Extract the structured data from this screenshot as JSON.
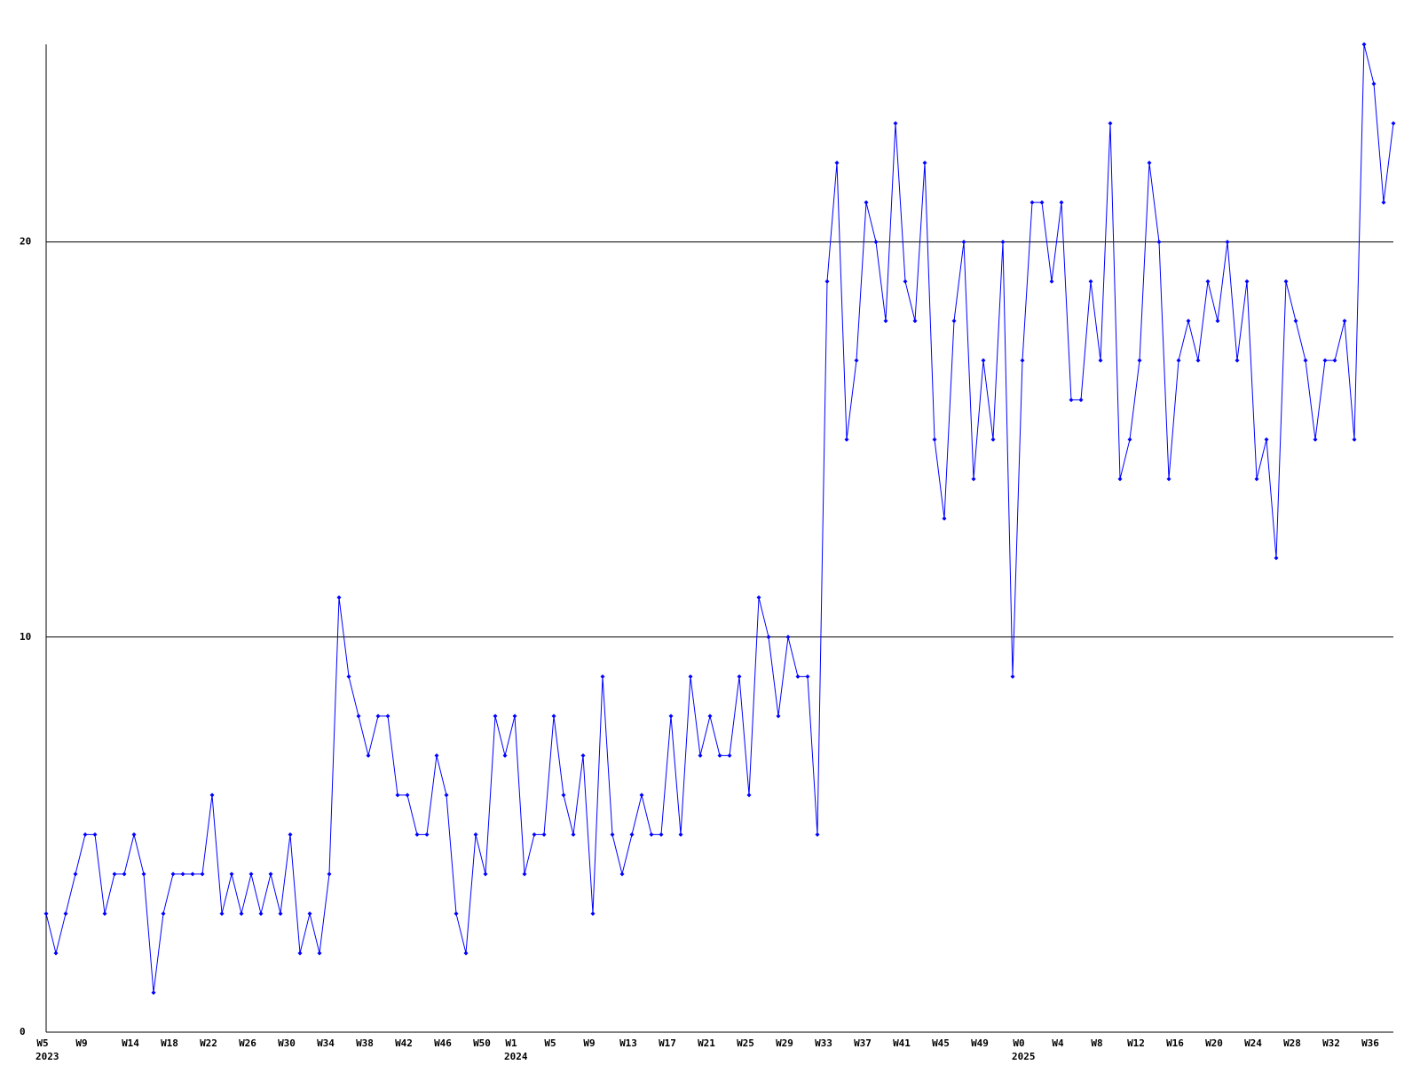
{
  "chart_data": {
    "type": "line",
    "categories": [
      "W5",
      null,
      null,
      null,
      "W9",
      null,
      null,
      null,
      null,
      "W14",
      null,
      null,
      null,
      "W18",
      null,
      null,
      null,
      "W22",
      null,
      null,
      null,
      "W26",
      null,
      null,
      null,
      "W30",
      null,
      null,
      null,
      "W34",
      null,
      null,
      null,
      "W38",
      null,
      null,
      null,
      "W42",
      null,
      null,
      null,
      "W46",
      null,
      null,
      null,
      "W50",
      null,
      null,
      "W1",
      null,
      null,
      null,
      "W5",
      null,
      null,
      null,
      "W9",
      null,
      null,
      null,
      "W13",
      null,
      null,
      null,
      "W17",
      null,
      null,
      null,
      "W21",
      null,
      null,
      null,
      "W25",
      null,
      null,
      null,
      "W29",
      null,
      null,
      null,
      "W33",
      null,
      null,
      null,
      "W37",
      null,
      null,
      null,
      "W41",
      null,
      null,
      null,
      "W45",
      null,
      null,
      null,
      "W49",
      null,
      null,
      null,
      "W0",
      null,
      null,
      null,
      "W4",
      null,
      null,
      null,
      "W8",
      null,
      null,
      null,
      "W12",
      null,
      null,
      null,
      "W16",
      null,
      null,
      null,
      "W20",
      null,
      null,
      null,
      "W24",
      null,
      null,
      null,
      "W28",
      null,
      null,
      null,
      "W32",
      null,
      null,
      null,
      "W36",
      null,
      null
    ],
    "category_groups": [
      "2023",
      null,
      null,
      null,
      null,
      null,
      null,
      null,
      null,
      null,
      null,
      null,
      null,
      null,
      null,
      null,
      null,
      null,
      null,
      null,
      null,
      null,
      null,
      null,
      null,
      null,
      null,
      null,
      null,
      null,
      null,
      null,
      null,
      null,
      null,
      null,
      null,
      null,
      null,
      null,
      null,
      null,
      null,
      null,
      null,
      null,
      null,
      null,
      "2024",
      null,
      null,
      null,
      null,
      null,
      null,
      null,
      null,
      null,
      null,
      null,
      null,
      null,
      null,
      null,
      null,
      null,
      null,
      null,
      null,
      null,
      null,
      null,
      null,
      null,
      null,
      null,
      null,
      null,
      null,
      null,
      null,
      null,
      null,
      null,
      null,
      null,
      null,
      null,
      null,
      null,
      null,
      null,
      null,
      null,
      null,
      null,
      null,
      null,
      null,
      null,
      "2025",
      null,
      null,
      null,
      null,
      null,
      null,
      null,
      null,
      null,
      null,
      null,
      null,
      null,
      null,
      null,
      null,
      null,
      null,
      null,
      null,
      null,
      null,
      null,
      null,
      null,
      null,
      null,
      null,
      null,
      null,
      null,
      null,
      null,
      null,
      null,
      null,
      null,
      null
    ],
    "values": [
      3,
      2,
      3,
      4,
      5,
      5,
      3,
      4,
      4,
      5,
      4,
      1,
      3,
      4,
      4,
      4,
      4,
      6,
      3,
      4,
      3,
      4,
      3,
      4,
      3,
      5,
      2,
      3,
      2,
      4,
      11,
      9,
      8,
      7,
      8,
      8,
      6,
      6,
      5,
      5,
      7,
      6,
      3,
      2,
      5,
      4,
      8,
      7,
      8,
      4,
      5,
      5,
      8,
      6,
      5,
      7,
      3,
      9,
      5,
      4,
      5,
      6,
      5,
      5,
      8,
      5,
      9,
      7,
      8,
      7,
      7,
      9,
      6,
      11,
      10,
      8,
      10,
      9,
      9,
      5,
      19,
      22,
      15,
      17,
      21,
      20,
      18,
      23,
      19,
      18,
      22,
      15,
      13,
      18,
      20,
      14,
      17,
      15,
      20,
      9,
      17,
      21,
      21,
      19,
      21,
      16,
      16,
      19,
      17,
      23,
      14,
      15,
      17,
      22,
      20,
      14,
      17,
      18,
      17,
      19,
      18,
      20,
      17,
      19,
      14,
      15,
      12,
      19,
      18,
      17,
      15,
      17,
      17,
      18,
      15,
      25,
      24,
      21,
      23
    ],
    "color": "#0000ff",
    "ylim": [
      0,
      25
    ],
    "yticks": [
      0,
      10,
      20
    ],
    "grid": true
  }
}
